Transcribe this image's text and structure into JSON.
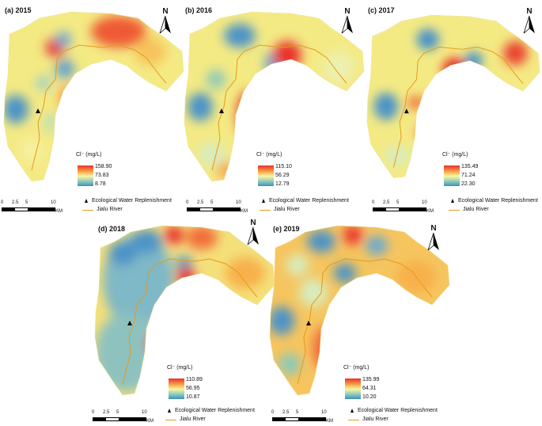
{
  "panels": [
    {
      "label": "(a) 2015",
      "legend_title": "Cl⁻ (mg/L)",
      "max": "158.90",
      "mid": "73.83",
      "min": "8.78"
    },
    {
      "label": "(b) 2016",
      "legend_title": "Cl⁻ (mg/L)",
      "max": "115.10",
      "mid": "56.29",
      "min": "12.79"
    },
    {
      "label": "(c) 2017",
      "legend_title": "Cl⁻ (mg/L)",
      "max": "135.49",
      "mid": "71.24",
      "min": "22.30"
    },
    {
      "label": "(d) 2018",
      "legend_title": "Cl⁻ (mg/L)",
      "max": "110.89",
      "mid": "56.95",
      "min": "10.87"
    },
    {
      "label": "(e) 2019",
      "legend_title": "Cl⁻ (mg/L)",
      "max": "135.99",
      "mid": "64.31",
      "min": "10.20"
    }
  ],
  "legend_items": {
    "replenishment": "Ecological Water Replenishment",
    "river": "Jialu River"
  },
  "north_label": "N",
  "scale": {
    "ticks": [
      "0",
      "2.5",
      "5",
      "10"
    ],
    "unit": "KM"
  },
  "colors": {
    "high": "#e8312a",
    "mid": "#f7f6a0",
    "low": "#3d8fc8",
    "river": "#e59a1b",
    "land_base": "#f5e98a"
  },
  "map_data": {
    "variable": "Cl⁻ concentration (mg/L)",
    "years": [
      "2015",
      "2016",
      "2017",
      "2018",
      "2019"
    ],
    "legend": [
      "Ecological Water Replenishment",
      "Jialu River"
    ]
  }
}
